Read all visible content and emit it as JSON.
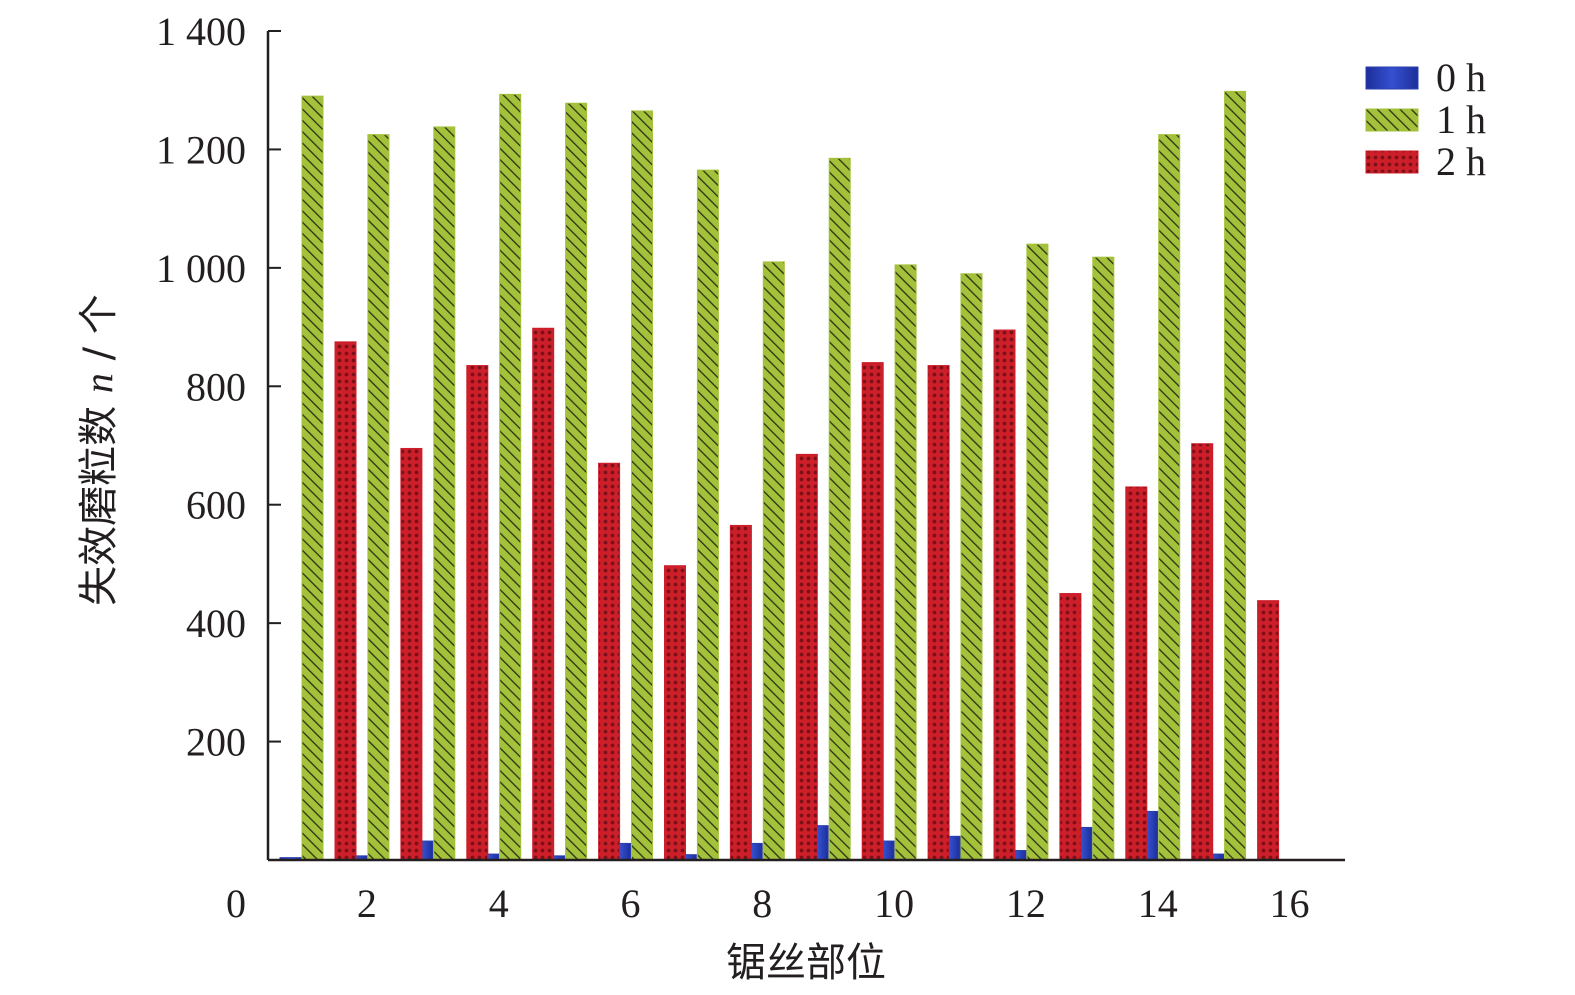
{
  "chart_data": {
    "type": "bar",
    "xlabel": "锯丝部位",
    "ylabel_text": "失效磨粒数 ",
    "ylabel_var": "n",
    "ylabel_unit": " / 个",
    "ylim": [
      0,
      1400
    ],
    "yticks": [
      {
        "value": 200,
        "label": "200"
      },
      {
        "value": 400,
        "label": "400"
      },
      {
        "value": 600,
        "label": "600"
      },
      {
        "value": 800,
        "label": "800"
      },
      {
        "value": 1000,
        "label": "1 000"
      },
      {
        "value": 1200,
        "label": "1 200"
      },
      {
        "value": 1400,
        "label": "1 400"
      }
    ],
    "origin_label": "0",
    "x": [
      1,
      2,
      3,
      4,
      5,
      6,
      7,
      8,
      9,
      10,
      11,
      12,
      13,
      14,
      15,
      16
    ],
    "xticks": [
      "2",
      "4",
      "6",
      "8",
      "10",
      "12",
      "14",
      "16"
    ],
    "series": [
      {
        "name": "0 h",
        "color": "#2a3fb0",
        "pattern": "solid",
        "values": [
          4,
          7,
          32,
          10,
          7,
          28,
          9,
          28,
          58,
          32,
          40,
          16,
          55,
          82,
          10,
          0
        ]
      },
      {
        "name": "1 h",
        "color": "#a3c13a",
        "pattern": "hatch",
        "values": [
          1290,
          1225,
          1238,
          1293,
          1278,
          1265,
          1165,
          1010,
          1185,
          1005,
          990,
          1040,
          1018,
          1225,
          1298,
          0
        ]
      },
      {
        "name": "2 h",
        "color": "#cc1f2a",
        "pattern": "dots",
        "values": [
          875,
          695,
          835,
          898,
          670,
          497,
          565,
          685,
          840,
          835,
          895,
          450,
          630,
          703,
          438,
          0
        ]
      }
    ],
    "legend": "top-right",
    "grid": false
  }
}
